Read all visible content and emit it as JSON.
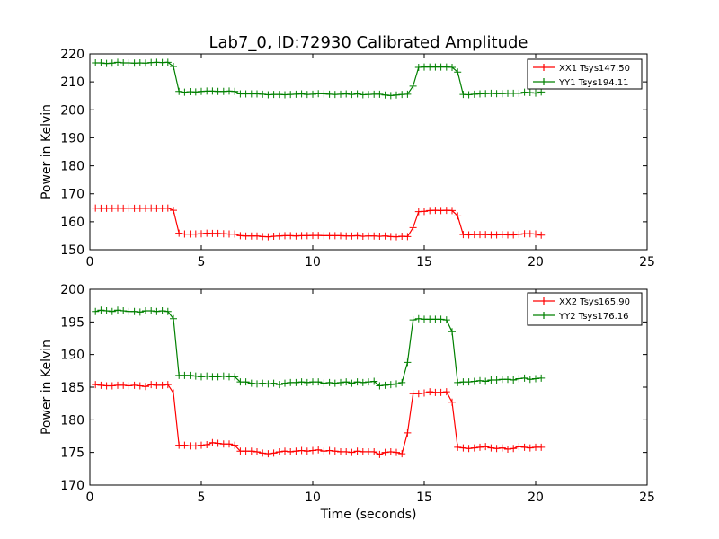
{
  "chart_data": [
    {
      "type": "line",
      "title": "Lab7_0, ID:72930 Calibrated Amplitude",
      "xlabel": "",
      "ylabel": "Power in Kelvin",
      "xlim": [
        0,
        25
      ],
      "ylim": [
        150,
        220
      ],
      "xticks": [
        "0",
        "5",
        "10",
        "15",
        "20",
        "25"
      ],
      "yticks": [
        "150",
        "160",
        "170",
        "180",
        "190",
        "200",
        "210",
        "220"
      ],
      "grid": false,
      "legend_position": "top-right",
      "x": [
        0.25,
        0.5,
        0.75,
        1.0,
        1.25,
        1.5,
        1.75,
        2.0,
        2.25,
        2.5,
        2.75,
        3.0,
        3.25,
        3.5,
        3.75,
        4.0,
        4.25,
        4.5,
        4.75,
        5.0,
        5.25,
        5.5,
        5.75,
        6.0,
        6.25,
        6.5,
        6.75,
        7.0,
        7.25,
        7.5,
        7.75,
        8.0,
        8.25,
        8.5,
        8.75,
        9.0,
        9.25,
        9.5,
        9.75,
        10.0,
        10.25,
        10.5,
        10.75,
        11.0,
        11.25,
        11.5,
        11.75,
        12.0,
        12.25,
        12.5,
        12.75,
        13.0,
        13.25,
        13.5,
        13.75,
        14.0,
        14.25,
        14.5,
        14.75,
        15.0,
        15.25,
        15.5,
        15.75,
        16.0,
        16.25,
        16.5,
        16.75,
        17.0,
        17.25,
        17.5,
        17.75,
        18.0,
        18.25,
        18.5,
        18.75,
        19.0,
        19.25,
        19.5,
        19.75,
        20.0,
        20.25
      ],
      "series": [
        {
          "name": "XX1 Tsys147.50",
          "color": "#ff0000",
          "values": [
            164.9,
            164.8,
            164.8,
            164.8,
            164.9,
            164.8,
            164.9,
            164.8,
            164.8,
            164.8,
            164.9,
            164.8,
            164.8,
            164.9,
            164.1,
            155.9,
            155.6,
            155.6,
            155.6,
            155.7,
            155.9,
            155.8,
            155.8,
            155.7,
            155.6,
            155.6,
            155.0,
            154.9,
            154.9,
            154.9,
            154.7,
            154.6,
            154.8,
            154.9,
            155.0,
            155.0,
            154.9,
            155.0,
            155.0,
            155.1,
            155.1,
            155.0,
            155.0,
            155.0,
            155.0,
            154.9,
            154.9,
            155.0,
            154.8,
            154.9,
            154.9,
            154.8,
            154.9,
            154.7,
            154.6,
            154.8,
            154.7,
            157.9,
            163.6,
            163.7,
            164.0,
            164.1,
            164.0,
            164.1,
            164.0,
            162.1,
            155.4,
            155.3,
            155.4,
            155.4,
            155.4,
            155.3,
            155.3,
            155.4,
            155.3,
            155.3,
            155.5,
            155.7,
            155.7,
            155.6,
            155.2
          ]
        },
        {
          "name": "YY1 Tsys194.11",
          "color": "#008000",
          "values": [
            216.8,
            216.8,
            216.6,
            216.7,
            217.0,
            216.8,
            216.8,
            216.7,
            216.8,
            216.7,
            216.9,
            217.0,
            216.9,
            217.0,
            215.5,
            206.6,
            206.3,
            206.5,
            206.4,
            206.6,
            206.7,
            206.7,
            206.6,
            206.6,
            206.7,
            206.6,
            205.7,
            205.7,
            205.7,
            205.7,
            205.6,
            205.4,
            205.5,
            205.5,
            205.4,
            205.5,
            205.6,
            205.7,
            205.5,
            205.6,
            205.8,
            205.7,
            205.6,
            205.5,
            205.6,
            205.7,
            205.5,
            205.7,
            205.4,
            205.5,
            205.6,
            205.6,
            205.3,
            205.1,
            205.3,
            205.5,
            205.6,
            208.5,
            215.2,
            215.3,
            215.3,
            215.3,
            215.3,
            215.3,
            215.2,
            213.5,
            205.5,
            205.4,
            205.6,
            205.7,
            205.8,
            205.9,
            205.8,
            205.8,
            205.9,
            205.9,
            205.9,
            206.3,
            206.2,
            206.0,
            206.4
          ]
        }
      ]
    },
    {
      "type": "line",
      "title": "",
      "xlabel": "Time (seconds)",
      "ylabel": "Power in Kelvin",
      "xlim": [
        0,
        25
      ],
      "ylim": [
        170,
        200
      ],
      "xticks": [
        "0",
        "5",
        "10",
        "15",
        "20",
        "25"
      ],
      "yticks": [
        "170",
        "175",
        "180",
        "185",
        "190",
        "195",
        "200"
      ],
      "grid": false,
      "legend_position": "top-right",
      "x": [
        0.25,
        0.5,
        0.75,
        1.0,
        1.25,
        1.5,
        1.75,
        2.0,
        2.25,
        2.5,
        2.75,
        3.0,
        3.25,
        3.5,
        3.75,
        4.0,
        4.25,
        4.5,
        4.75,
        5.0,
        5.25,
        5.5,
        5.75,
        6.0,
        6.25,
        6.5,
        6.75,
        7.0,
        7.25,
        7.5,
        7.75,
        8.0,
        8.25,
        8.5,
        8.75,
        9.0,
        9.25,
        9.5,
        9.75,
        10.0,
        10.25,
        10.5,
        10.75,
        11.0,
        11.25,
        11.5,
        11.75,
        12.0,
        12.25,
        12.5,
        12.75,
        13.0,
        13.25,
        13.5,
        13.75,
        14.0,
        14.25,
        14.5,
        14.75,
        15.0,
        15.25,
        15.5,
        15.75,
        16.0,
        16.25,
        16.5,
        16.75,
        17.0,
        17.25,
        17.5,
        17.75,
        18.0,
        18.25,
        18.5,
        18.75,
        19.0,
        19.25,
        19.5,
        19.75,
        20.0,
        20.25
      ],
      "series": [
        {
          "name": "XX2 Tsys165.90",
          "color": "#ff0000",
          "values": [
            185.4,
            185.3,
            185.2,
            185.2,
            185.3,
            185.3,
            185.2,
            185.3,
            185.2,
            185.1,
            185.4,
            185.3,
            185.3,
            185.4,
            184.1,
            176.1,
            176.1,
            176.0,
            176.0,
            176.1,
            176.2,
            176.5,
            176.4,
            176.3,
            176.3,
            176.1,
            175.2,
            175.2,
            175.2,
            175.1,
            174.9,
            174.8,
            174.9,
            175.1,
            175.2,
            175.1,
            175.2,
            175.3,
            175.2,
            175.3,
            175.4,
            175.2,
            175.3,
            175.2,
            175.1,
            175.1,
            175.0,
            175.2,
            175.1,
            175.1,
            175.1,
            174.7,
            175.0,
            175.1,
            175.0,
            174.8,
            178.0,
            184.0,
            184.0,
            184.1,
            184.3,
            184.2,
            184.2,
            184.3,
            182.7,
            175.8,
            175.7,
            175.6,
            175.7,
            175.8,
            175.9,
            175.7,
            175.6,
            175.7,
            175.5,
            175.6,
            175.9,
            175.8,
            175.7,
            175.8,
            175.8
          ]
        },
        {
          "name": "YY2 Tsys176.16",
          "color": "#008000",
          "values": [
            196.6,
            196.8,
            196.7,
            196.6,
            196.8,
            196.7,
            196.6,
            196.6,
            196.5,
            196.7,
            196.7,
            196.6,
            196.7,
            196.6,
            195.5,
            186.8,
            186.8,
            186.8,
            186.7,
            186.6,
            186.7,
            186.6,
            186.6,
            186.7,
            186.6,
            186.6,
            185.8,
            185.8,
            185.6,
            185.5,
            185.6,
            185.5,
            185.6,
            185.4,
            185.6,
            185.7,
            185.7,
            185.8,
            185.7,
            185.8,
            185.8,
            185.6,
            185.7,
            185.6,
            185.7,
            185.8,
            185.6,
            185.8,
            185.7,
            185.8,
            185.9,
            185.2,
            185.3,
            185.4,
            185.5,
            185.7,
            188.8,
            195.3,
            195.5,
            195.4,
            195.4,
            195.4,
            195.4,
            195.3,
            193.5,
            185.7,
            185.8,
            185.8,
            185.9,
            186.0,
            185.9,
            186.1,
            186.1,
            186.2,
            186.2,
            186.1,
            186.3,
            186.4,
            186.2,
            186.3,
            186.4
          ]
        }
      ]
    }
  ]
}
